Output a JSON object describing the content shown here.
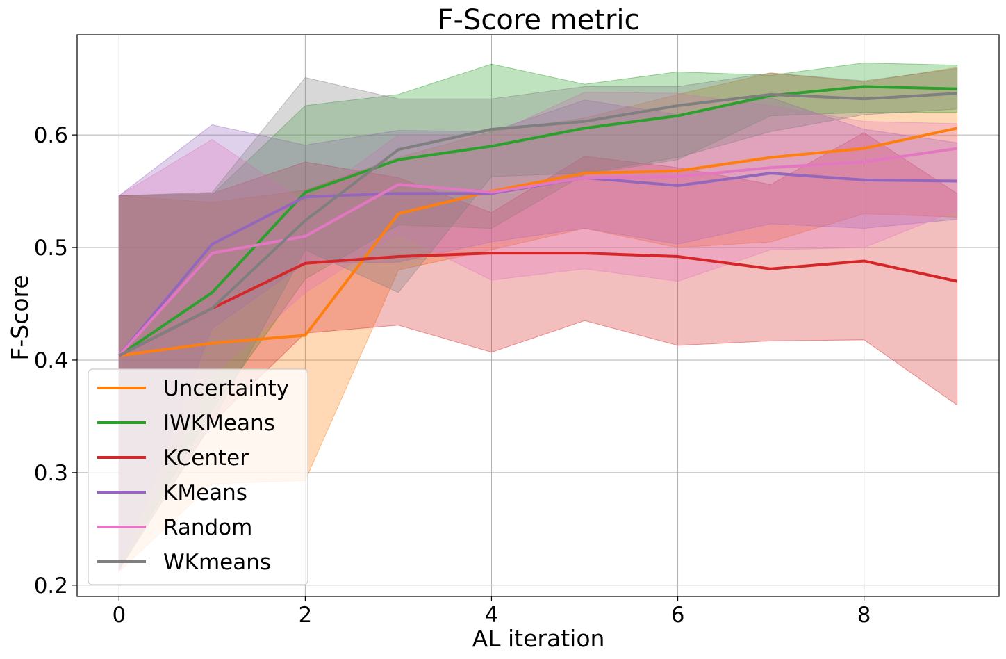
{
  "chart_data": {
    "type": "line",
    "title": "F-Score metric",
    "xlabel": "AL iteration",
    "ylabel": "F-Score",
    "xlim": [
      -0.45,
      9.45
    ],
    "ylim": [
      0.19,
      0.689
    ],
    "xticks": [
      0,
      2,
      4,
      6,
      8
    ],
    "xtick_labels": [
      "0",
      "2",
      "4",
      "6",
      "8"
    ],
    "yticks": [
      0.2,
      0.3,
      0.4,
      0.5,
      0.6
    ],
    "ytick_labels": [
      "0.2",
      "0.3",
      "0.4",
      "0.5",
      "0.6"
    ],
    "grid": true,
    "legend_position": "lower-left",
    "x": [
      0,
      1,
      2,
      3,
      4,
      5,
      6,
      7,
      8,
      9
    ],
    "series": [
      {
        "name": "Uncertainty",
        "color": "#ff7f0e",
        "values": [
          0.404,
          0.415,
          0.422,
          0.53,
          0.55,
          0.566,
          0.568,
          0.58,
          0.588,
          0.606
        ],
        "lower": [
          0.212,
          0.29,
          0.293,
          0.48,
          0.498,
          0.517,
          0.5,
          0.505,
          0.53,
          0.527
        ],
        "upper": [
          0.546,
          0.54,
          0.551,
          0.58,
          0.603,
          0.615,
          0.636,
          0.655,
          0.647,
          0.66
        ]
      },
      {
        "name": "IWKMeans",
        "color": "#2ca02c",
        "values": [
          0.404,
          0.46,
          0.549,
          0.578,
          0.59,
          0.606,
          0.617,
          0.635,
          0.643,
          0.641
        ],
        "lower": [
          0.214,
          0.356,
          0.472,
          0.52,
          0.517,
          0.565,
          0.578,
          0.617,
          0.62,
          0.62
        ],
        "upper": [
          0.546,
          0.547,
          0.626,
          0.636,
          0.663,
          0.645,
          0.656,
          0.653,
          0.664,
          0.662
        ]
      },
      {
        "name": "KCenter",
        "color": "#d62728",
        "values": [
          0.404,
          0.446,
          0.486,
          0.492,
          0.495,
          0.495,
          0.492,
          0.481,
          0.488,
          0.47
        ],
        "lower": [
          0.214,
          0.344,
          0.424,
          0.431,
          0.407,
          0.435,
          0.413,
          0.417,
          0.418,
          0.36
        ],
        "upper": [
          0.546,
          0.548,
          0.576,
          0.562,
          0.531,
          0.581,
          0.571,
          0.556,
          0.602,
          0.548
        ]
      },
      {
        "name": "KMeans",
        "color": "#9467bd",
        "values": [
          0.404,
          0.503,
          0.545,
          0.548,
          0.548,
          0.562,
          0.555,
          0.566,
          0.56,
          0.559
        ],
        "lower": [
          0.213,
          0.428,
          0.486,
          0.487,
          0.505,
          0.517,
          0.503,
          0.521,
          0.517,
          0.525
        ],
        "upper": [
          0.546,
          0.609,
          0.591,
          0.604,
          0.603,
          0.631,
          0.618,
          0.633,
          0.605,
          0.593
        ]
      },
      {
        "name": "Random",
        "color": "#e377c2",
        "values": [
          0.404,
          0.495,
          0.51,
          0.556,
          0.549,
          0.562,
          0.563,
          0.571,
          0.576,
          0.588
        ],
        "lower": [
          0.213,
          0.386,
          0.46,
          0.512,
          0.471,
          0.481,
          0.47,
          0.498,
          0.5,
          0.533
        ],
        "upper": [
          0.546,
          0.596,
          0.54,
          0.6,
          0.6,
          0.638,
          0.637,
          0.626,
          0.612,
          0.61
        ]
      },
      {
        "name": "WKmeans",
        "color": "#7f7f7f",
        "values": [
          0.404,
          0.446,
          0.524,
          0.587,
          0.605,
          0.612,
          0.626,
          0.636,
          0.632,
          0.637
        ],
        "lower": [
          0.213,
          0.345,
          0.498,
          0.46,
          0.563,
          0.566,
          0.58,
          0.603,
          0.618,
          0.623
        ],
        "upper": [
          0.546,
          0.549,
          0.651,
          0.632,
          0.632,
          0.643,
          0.643,
          0.655,
          0.648,
          0.659
        ]
      }
    ]
  }
}
